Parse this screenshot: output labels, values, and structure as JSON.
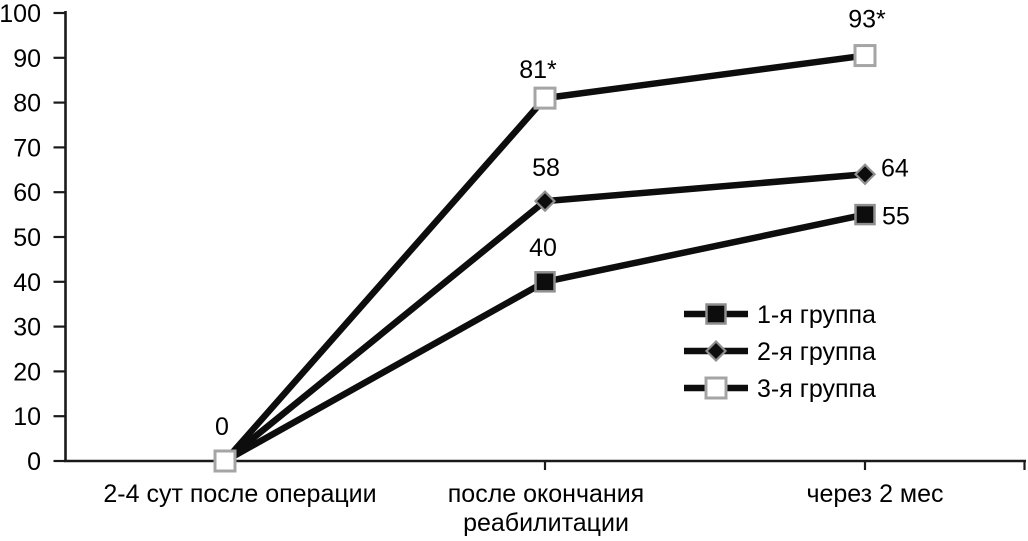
{
  "colors": {
    "background": "#ffffff",
    "series_line": "#0d0d0d",
    "axis": "#1a1a1a",
    "text": "#000000",
    "filled_marker_fill": "#0d0d0d",
    "filled_marker_border": "#8f8f8f",
    "open_marker_fill": "#ffffff",
    "open_marker_border": "#a5a5a5"
  },
  "chart_data": {
    "type": "line",
    "title": "",
    "xlabel": "",
    "ylabel": "",
    "grid": false,
    "legend_position": "inside-right-middle",
    "ylim": [
      0,
      100
    ],
    "ytick_labels": [
      "0",
      "10",
      "20",
      "30",
      "40",
      "50",
      "60",
      "70",
      "80",
      "90",
      "100"
    ],
    "categories": [
      "2-4 сут после операции",
      "после окончания\nреабилитации",
      "через 2 мес"
    ],
    "series": [
      {
        "name": "1-я группа",
        "marker": "filled-square",
        "values": [
          0,
          40,
          55
        ],
        "point_labels": [
          "",
          "40",
          "55"
        ],
        "label_pos": [
          null,
          "above",
          "right"
        ],
        "label_offsets": [
          null,
          [
            -2,
            -26
          ],
          [
            17,
            10
          ]
        ]
      },
      {
        "name": "2-я группа",
        "marker": "filled-diamond",
        "values": [
          0,
          58,
          64
        ],
        "point_labels": [
          "",
          "58",
          "64"
        ],
        "label_pos": [
          null,
          "above",
          "right"
        ],
        "label_offsets": [
          null,
          [
            1,
            -25
          ],
          [
            16,
            2
          ]
        ]
      },
      {
        "name": "3-я группа",
        "marker": "open-square",
        "values": [
          0,
          81,
          93
        ],
        "plotted_values": [
          0,
          81,
          90.5
        ],
        "point_labels": [
          "0",
          "81*",
          "93*"
        ],
        "label_pos": [
          "above",
          "above",
          "above"
        ],
        "label_offsets": [
          [
            -3,
            -26
          ],
          [
            -7,
            -20
          ],
          [
            2,
            -28
          ]
        ]
      }
    ]
  }
}
